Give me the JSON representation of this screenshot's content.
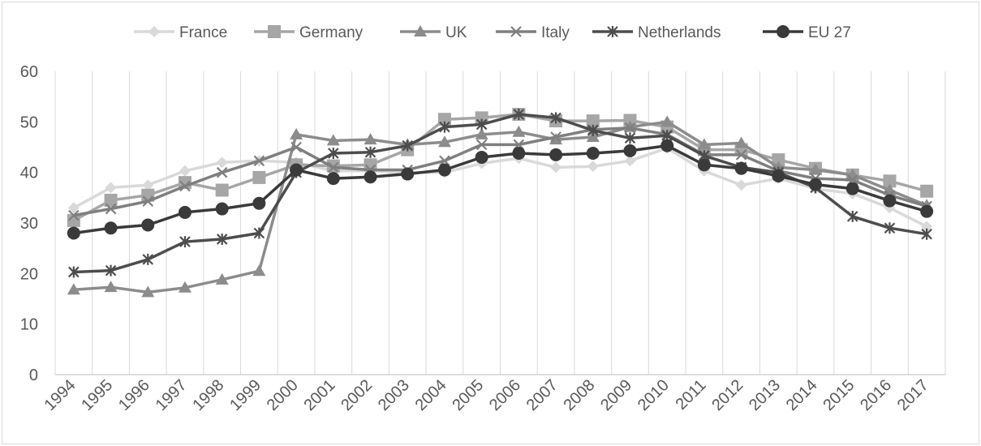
{
  "chart_data": {
    "type": "line",
    "title": "",
    "xlabel": "",
    "ylabel": "",
    "ylim": [
      0,
      60
    ],
    "yticks": [
      "0",
      "10",
      "20",
      "30",
      "40",
      "50",
      "60"
    ],
    "grid": "vertical",
    "legend_position": "top",
    "categories": [
      "1994",
      "1995",
      "1996",
      "1997",
      "1998",
      "1999",
      "2000",
      "2001",
      "2002",
      "2003",
      "2004",
      "2005",
      "2006",
      "2007",
      "2008",
      "2009",
      "2010",
      "2011",
      "2012",
      "2013",
      "2014",
      "2015",
      "2016",
      "2017"
    ],
    "series": [
      {
        "name": "France",
        "marker": "diamond",
        "color": "#d9d9d9",
        "values": [
          33,
          37,
          37.5,
          40.3,
          42,
          42.3,
          42,
          40.3,
          40.3,
          40,
          40,
          41.8,
          42.8,
          41,
          41.2,
          42.3,
          44.8,
          40.3,
          37.5,
          38.8,
          36.8,
          35.8,
          33,
          29.3
        ]
      },
      {
        "name": "Germany",
        "marker": "square",
        "color": "#a6a6a6",
        "values": [
          30.5,
          34.5,
          35.5,
          38,
          36.5,
          39,
          41.5,
          41.3,
          41.5,
          44.5,
          50.5,
          50.8,
          51.5,
          50.2,
          50.2,
          50.3,
          49,
          44.5,
          44.5,
          42.5,
          40.8,
          39.5,
          38.3,
          36.3
        ]
      },
      {
        "name": "UK",
        "marker": "triangle",
        "color": "#8c8c8c",
        "values": [
          16.8,
          17.3,
          16.3,
          17.2,
          18.8,
          20.5,
          47.5,
          46.3,
          46.5,
          45.5,
          46,
          47.5,
          48,
          46.5,
          47,
          49,
          50,
          45.5,
          45.8,
          41,
          40.5,
          39.5,
          36.5,
          33.5
        ]
      },
      {
        "name": "Italy",
        "marker": "x",
        "color": "#7f7f7f",
        "values": [
          31.5,
          32.8,
          34.3,
          37.3,
          40,
          42.3,
          45,
          41,
          40.5,
          40.5,
          42.3,
          45.5,
          45.5,
          47,
          48.5,
          48.8,
          47.5,
          43.5,
          43.5,
          40.3,
          38.8,
          38.5,
          35.5,
          33.3
        ]
      },
      {
        "name": "Netherlands",
        "marker": "star",
        "color": "#4d4d4d",
        "values": [
          20.3,
          20.6,
          22.8,
          26.3,
          26.8,
          28,
          40,
          43.8,
          44,
          45.3,
          49,
          49.5,
          51.5,
          50.8,
          48.3,
          46.8,
          47.3,
          43.3,
          41,
          40,
          37,
          31.3,
          29,
          27.8
        ]
      },
      {
        "name": "EU 27",
        "marker": "circle",
        "color": "#3a3a3a",
        "values": [
          28,
          29,
          29.6,
          32.1,
          32.8,
          33.9,
          40.5,
          38.8,
          39.1,
          39.7,
          40.5,
          43,
          43.8,
          43.5,
          43.8,
          44.3,
          45.3,
          41.5,
          40.8,
          39.3,
          37.6,
          36.8,
          34.4,
          32.3
        ]
      }
    ]
  }
}
